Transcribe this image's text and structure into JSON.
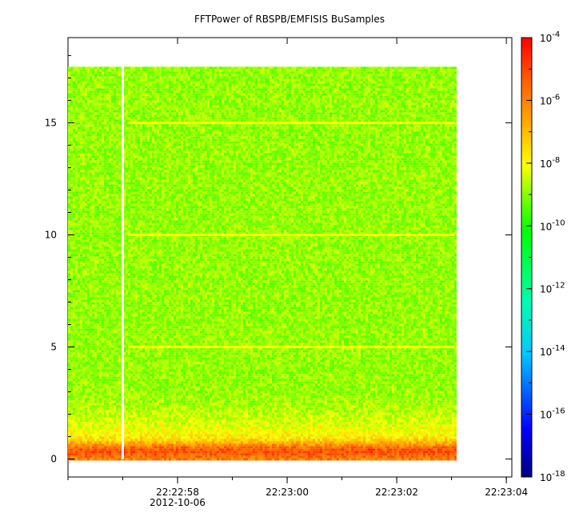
{
  "chart_data": {
    "type": "heatmap",
    "title": "FFTPower of RBSPB/EMFISIS  BuSamples",
    "xlabel": "",
    "ylabel": "",
    "x_axis": {
      "type": "time",
      "range": [
        "22:22:56",
        "22:23:04.1"
      ],
      "tick_labels": [
        "22:22:58",
        "22:23:00",
        "22:23:02",
        "22:23:04"
      ],
      "date_label": "2012-10-06",
      "minor_ticks_sec": 1
    },
    "y_axis": {
      "range": [
        -0.8,
        18.8
      ],
      "ticks": [
        0,
        5,
        10,
        15
      ]
    },
    "data_extent": {
      "x_start": "22:22:56",
      "x_end": "22:23:03.05",
      "y_min": 0,
      "y_max": 17.5
    },
    "data_gaps_x": [
      "22:22:57.0"
    ],
    "colorbar": {
      "scale": "log",
      "range": [
        1e-18,
        0.0001
      ],
      "tick_exponents": [
        -18,
        -16,
        -14,
        -12,
        -10,
        -8,
        -6,
        -4
      ],
      "tick_base": "10",
      "colormap": [
        "#000080",
        "#0000ff",
        "#00c8ff",
        "#00ffb0",
        "#00ff00",
        "#80ff00",
        "#ffff00",
        "#ffb000",
        "#ff6000",
        "#ff0000"
      ]
    },
    "background_level": 1e-10,
    "harmonic_lines": [
      {
        "y": 5,
        "level": 1e-09
      },
      {
        "y": 10,
        "level": 1e-09
      },
      {
        "y": 15,
        "level": 1e-09
      }
    ],
    "low_frequency_band": {
      "y_range": [
        0,
        3.5
      ],
      "peak_y": 0.4,
      "peak_level": 1e-06
    }
  }
}
